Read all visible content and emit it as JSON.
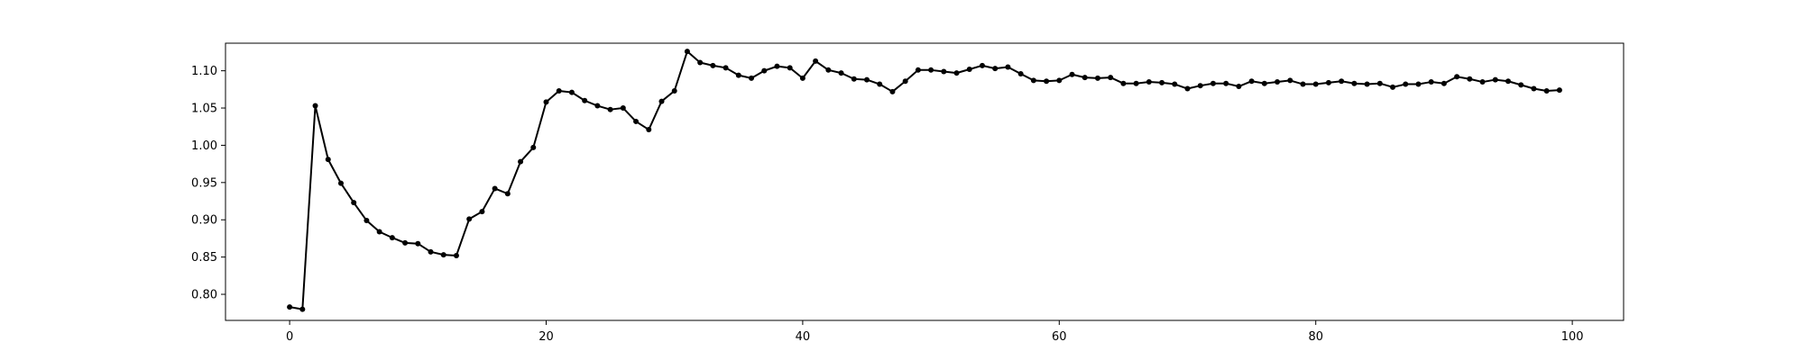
{
  "chart_data": {
    "type": "line",
    "title": "",
    "xlabel": "",
    "ylabel": "",
    "xlim": [
      -5,
      104
    ],
    "ylim": [
      0.765,
      1.137
    ],
    "grid": false,
    "legend": "none",
    "x_ticks": [
      0,
      20,
      40,
      60,
      80,
      100
    ],
    "x_tick_labels": [
      "0",
      "20",
      "40",
      "60",
      "80",
      "100"
    ],
    "y_ticks": [
      0.8,
      0.85,
      0.9,
      0.95,
      1.0,
      1.05,
      1.1
    ],
    "y_tick_labels": [
      "0.80",
      "0.85",
      "0.90",
      "0.95",
      "1.00",
      "1.05",
      "1.10"
    ],
    "series": [
      {
        "name": "series",
        "color": "#000000",
        "marker": "circle",
        "x": [
          0,
          1,
          2,
          3,
          4,
          5,
          6,
          7,
          8,
          9,
          10,
          11,
          12,
          13,
          14,
          15,
          16,
          17,
          18,
          19,
          20,
          21,
          22,
          23,
          24,
          25,
          26,
          27,
          28,
          29,
          30,
          31,
          32,
          33,
          34,
          35,
          36,
          37,
          38,
          39,
          40,
          41,
          42,
          43,
          44,
          45,
          46,
          47,
          48,
          49,
          50,
          51,
          52,
          53,
          54,
          55,
          56,
          57,
          58,
          59,
          60,
          61,
          62,
          63,
          64,
          65,
          66,
          67,
          68,
          69,
          70,
          71,
          72,
          73,
          74,
          75,
          76,
          77,
          78,
          79,
          80,
          81,
          82,
          83,
          84,
          85,
          86,
          87,
          88,
          89,
          90,
          91,
          92,
          93,
          94,
          95,
          96,
          97,
          98,
          99
        ],
        "values": [
          0.783,
          0.78,
          1.053,
          0.981,
          0.949,
          0.923,
          0.899,
          0.884,
          0.876,
          0.869,
          0.868,
          0.857,
          0.853,
          0.852,
          0.901,
          0.911,
          0.942,
          0.935,
          0.978,
          0.997,
          1.058,
          1.073,
          1.071,
          1.06,
          1.053,
          1.048,
          1.05,
          1.032,
          1.021,
          1.059,
          1.073,
          1.126,
          1.111,
          1.107,
          1.104,
          1.094,
          1.09,
          1.1,
          1.106,
          1.104,
          1.09,
          1.113,
          1.101,
          1.097,
          1.089,
          1.088,
          1.082,
          1.072,
          1.086,
          1.101,
          1.101,
          1.099,
          1.097,
          1.102,
          1.107,
          1.103,
          1.105,
          1.096,
          1.087,
          1.086,
          1.087,
          1.095,
          1.091,
          1.09,
          1.091,
          1.083,
          1.083,
          1.085,
          1.084,
          1.082,
          1.076,
          1.08,
          1.083,
          1.083,
          1.079,
          1.086,
          1.083,
          1.085,
          1.087,
          1.082,
          1.082,
          1.084,
          1.086,
          1.083,
          1.082,
          1.083,
          1.078,
          1.082,
          1.082,
          1.085,
          1.083,
          1.092,
          1.089,
          1.085,
          1.088,
          1.086,
          1.081,
          1.076,
          1.073,
          1.074
        ]
      }
    ]
  }
}
